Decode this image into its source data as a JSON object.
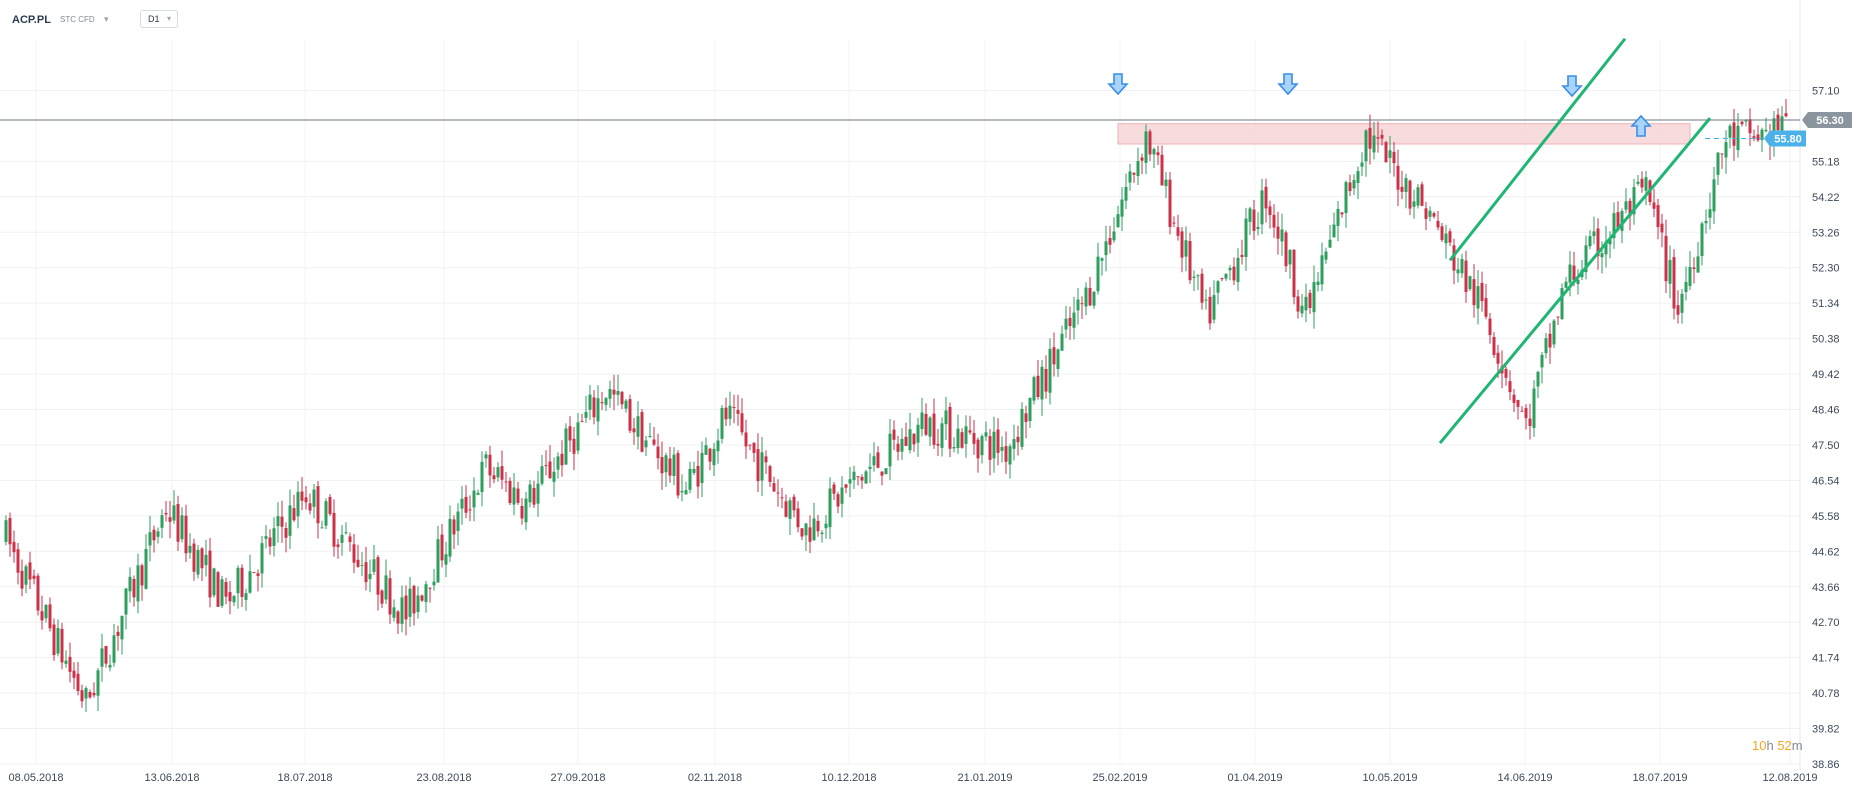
{
  "header": {
    "symbol": "ACP.PL",
    "category": "STC CFD",
    "timeframe": "D1"
  },
  "timer": {
    "hours": "10",
    "hours_unit": "h",
    "minutes": "52",
    "minutes_unit": "m"
  },
  "chart_data": {
    "type": "candlestick",
    "title": "",
    "xlabel": "",
    "ylabel": "",
    "ylim": [
      38.86,
      57.9
    ],
    "y_ticks": [
      "57.10",
      "55.18",
      "54.22",
      "53.26",
      "52.30",
      "51.34",
      "50.38",
      "49.42",
      "48.46",
      "47.50",
      "46.54",
      "45.58",
      "44.62",
      "43.66",
      "42.70",
      "41.74",
      "40.78",
      "39.82",
      "38.86"
    ],
    "x_ticks": [
      "08.05.2018",
      "13.06.2018",
      "18.07.2018",
      "23.08.2018",
      "27.09.2018",
      "02.11.2018",
      "10.12.2018",
      "21.01.2019",
      "25.02.2019",
      "01.04.2019",
      "10.05.2019",
      "14.06.2019",
      "18.07.2019",
      "12.08.2019"
    ],
    "current_price": "56.30",
    "level_price": "55.80",
    "resistance_zone": [
      55.65,
      56.2
    ],
    "channel": "ascending",
    "colors": {
      "bull": "#2e9e5f",
      "bear": "#c9334a",
      "channel": "#1fb573",
      "zone": "#f7d6d8",
      "arrow": "#3a8ee6",
      "price_badge": "#8a95a0",
      "level_badge": "#4ab2e8"
    },
    "anchors": [
      [
        0,
        45.0
      ],
      [
        20,
        40.5
      ],
      [
        40,
        45.8
      ],
      [
        55,
        43.2
      ],
      [
        75,
        46.2
      ],
      [
        100,
        42.9
      ],
      [
        120,
        46.9
      ],
      [
        130,
        45.9
      ],
      [
        150,
        49.0
      ],
      [
        170,
        46.3
      ],
      [
        180,
        48.3
      ],
      [
        200,
        45.2
      ],
      [
        210,
        46.3
      ],
      [
        230,
        48.1
      ],
      [
        250,
        47.4
      ],
      [
        270,
        51.5
      ],
      [
        285,
        55.9
      ],
      [
        300,
        50.9
      ],
      [
        315,
        54.3
      ],
      [
        325,
        51.0
      ],
      [
        340,
        55.9
      ],
      [
        355,
        53.9
      ],
      [
        370,
        51.0
      ],
      [
        380,
        48.0
      ],
      [
        390,
        51.9
      ],
      [
        410,
        54.4
      ],
      [
        418,
        51.2
      ],
      [
        430,
        55.8
      ],
      [
        440,
        55.9
      ],
      [
        445,
        56.3
      ]
    ]
  }
}
